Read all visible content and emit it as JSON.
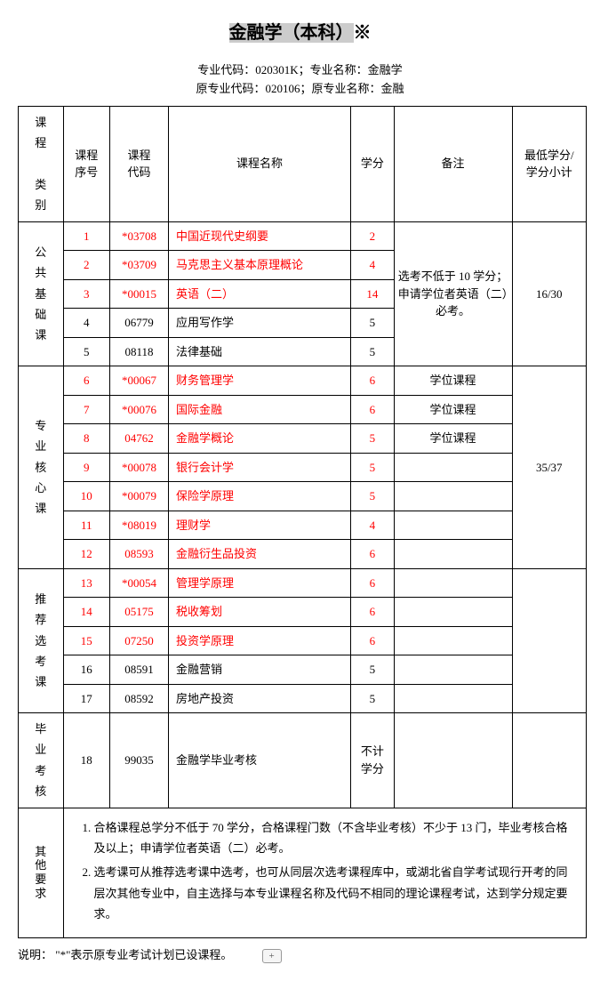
{
  "title_hl": "金融学（本科）",
  "title_suffix": "※",
  "subtitle_line1": "专业代码：020301K；专业名称：金融学",
  "subtitle_line2": "原专业代码：020106；原专业名称：金融",
  "headers": {
    "category": "课程\n类别",
    "seq": "课程\n序号",
    "code": "课程\n代码",
    "name": "课程名称",
    "credit": "学分",
    "note": "备注",
    "min": "最低学分/\n学分小计"
  },
  "cat": {
    "public": "公共基础课",
    "core": "专业核心课",
    "elective": "推荐选考课",
    "grad": "毕业考核",
    "other": "其他要求"
  },
  "public_note": "选考不低于 10 学分；申请学位者英语（二）必考。",
  "public_min": "16/30",
  "core_min": "35/37",
  "rows": {
    "r1": {
      "seq": "1",
      "code": "*03708",
      "name": "中国近现代史纲要",
      "credit": "2",
      "red": true
    },
    "r2": {
      "seq": "2",
      "code": "*03709",
      "name": "马克思主义基本原理概论",
      "credit": "4",
      "red": true
    },
    "r3": {
      "seq": "3",
      "code": "*00015",
      "name": "英语（二）",
      "credit": "14",
      "red": true
    },
    "r4": {
      "seq": "4",
      "code": "06779",
      "name": "应用写作学",
      "credit": "5",
      "red": false
    },
    "r5": {
      "seq": "5",
      "code": "08118",
      "name": "法律基础",
      "credit": "5",
      "red": false
    },
    "r6": {
      "seq": "6",
      "code": "*00067",
      "name": "财务管理学",
      "credit": "6",
      "note": "学位课程",
      "red": true
    },
    "r7": {
      "seq": "7",
      "code": "*00076",
      "name": "国际金融",
      "credit": "6",
      "note": "学位课程",
      "red": true
    },
    "r8": {
      "seq": "8",
      "code": "04762",
      "name": "金融学概论",
      "credit": "5",
      "note": "学位课程",
      "red": true
    },
    "r9": {
      "seq": "9",
      "code": "*00078",
      "name": "银行会计学",
      "credit": "5",
      "red": true
    },
    "r10": {
      "seq": "10",
      "code": "*00079",
      "name": "保险学原理",
      "credit": "5",
      "red": true
    },
    "r11": {
      "seq": "11",
      "code": "*08019",
      "name": "理财学",
      "credit": "4",
      "red": true
    },
    "r12": {
      "seq": "12",
      "code": "08593",
      "name": "金融衍生品投资",
      "credit": "6",
      "red": true
    },
    "r13": {
      "seq": "13",
      "code": "*00054",
      "name": "管理学原理",
      "credit": "6",
      "red": true
    },
    "r14": {
      "seq": "14",
      "code": "05175",
      "name": "税收筹划",
      "credit": "6",
      "red": true
    },
    "r15": {
      "seq": "15",
      "code": "07250",
      "name": "投资学原理",
      "credit": "6",
      "red": true
    },
    "r16": {
      "seq": "16",
      "code": "08591",
      "name": "金融营销",
      "credit": "5",
      "red": false
    },
    "r17": {
      "seq": "17",
      "code": "08592",
      "name": "房地产投资",
      "credit": "5",
      "red": false
    },
    "r18": {
      "seq": "18",
      "code": "99035",
      "name": "金融学毕业考核",
      "credit": "不计\n学分",
      "red": false
    }
  },
  "other_req": [
    "合格课程总学分不低于 70 学分，合格课程门数（不含毕业考核）不少于 13 门，毕业考核合格及以上；申请学位者英语（二）必考。",
    "选考课可从推荐选考课中选考，也可从同层次选考课程库中，或湖北省自学考试现行开考的同层次其他专业中，自主选择与本专业课程名称及代码不相同的理论课程考试，达到学分规定要求。"
  ],
  "footnote_label": "说明：",
  "footnote_text": "\"*\"表示原专业考试计划已设课程。",
  "plus": "+"
}
